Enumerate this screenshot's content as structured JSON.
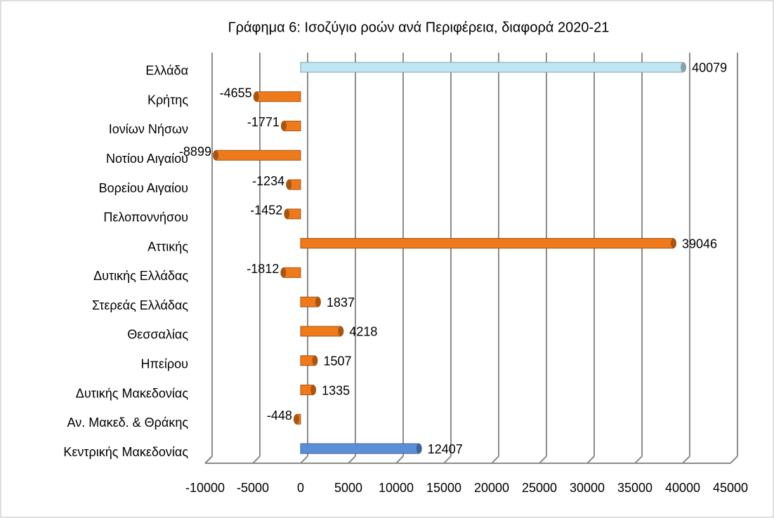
{
  "chart_data": {
    "type": "bar",
    "orientation": "horizontal",
    "title": "Γράφημα 6: Ισοζύγιο ροών ανά Περιφέρεια, διαφορά 2020-21",
    "categories": [
      "Ελλάδα",
      "Κρήτης",
      "Ιονίων Νήσων",
      "Νοτίου Αιγαίου",
      "Βορείου Αιγαίου",
      "Πελοποννήσου",
      "Αττικής",
      "Δυτικής Ελλάδας",
      "Στερεάς Ελλάδας",
      "Θεσσαλίας",
      "Ηπείρου",
      "Δυτικής Μακεδονίας",
      "Αν. Μακεδ. & Θράκης",
      "Κεντρικής Μακεδονίας"
    ],
    "values": [
      40079,
      -4655,
      -1771,
      -8899,
      -1234,
      -1452,
      39046,
      -1812,
      1837,
      4218,
      1507,
      1335,
      -448,
      12407
    ],
    "colors": [
      "#bfe6f2",
      "#ee7a1c",
      "#ee7a1c",
      "#ee7a1c",
      "#ee7a1c",
      "#ee7a1c",
      "#ee7a1c",
      "#ee7a1c",
      "#ee7a1c",
      "#ee7a1c",
      "#ee7a1c",
      "#ee7a1c",
      "#ee7a1c",
      "#5a8fd8"
    ],
    "xlim": [
      -10000,
      45000
    ],
    "xticks": [
      -10000,
      -5000,
      0,
      5000,
      10000,
      15000,
      20000,
      25000,
      30000,
      35000,
      40000,
      45000
    ],
    "grid": true
  }
}
